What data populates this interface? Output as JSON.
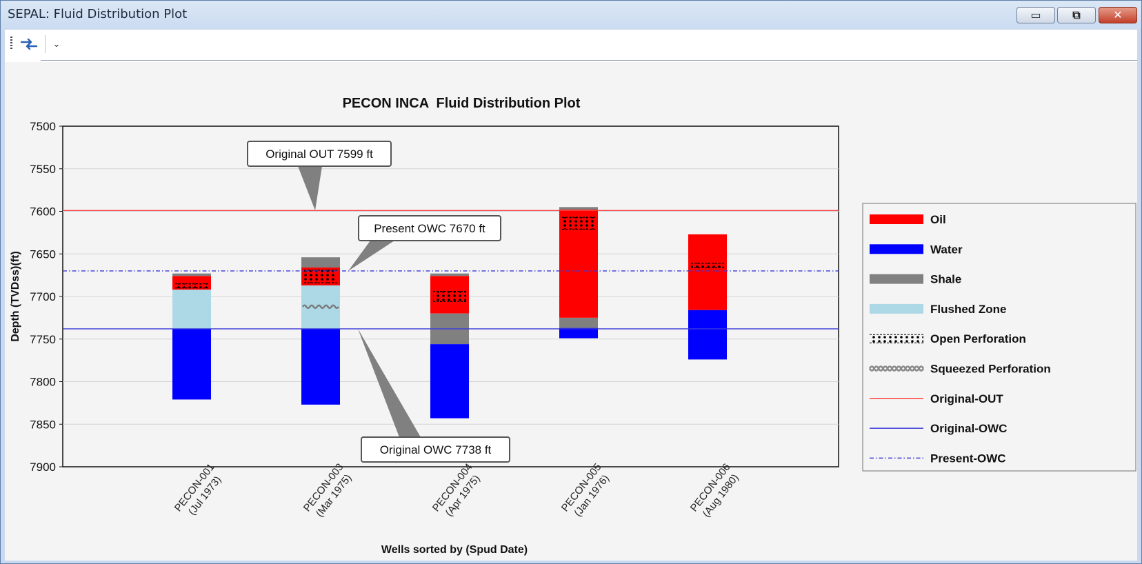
{
  "window": {
    "title": "SEPAL: Fluid Distribution Plot",
    "min_glyph": "▭",
    "max_glyph": "⧉",
    "close_glyph": "✕"
  },
  "toolbar": {
    "refresh_icon": "swap-arrows-icon",
    "overflow_glyph": "⌄"
  },
  "colors": {
    "oil": "#ff0000",
    "water": "#0000ff",
    "shale": "#808080",
    "flushed": "#add8e6",
    "original_out": "#ff4040",
    "original_owc": "#3a3ad8",
    "present_owc": "#3a3ad8"
  },
  "chart_data": {
    "type": "bar",
    "title": "PECON INCA  Fluid Distribution Plot",
    "xlabel": "Wells sorted by (Spud Date)",
    "ylabel": "Depth (TVDss)(ft)",
    "ylim": [
      7500,
      7900
    ],
    "y_inverted": true,
    "yticks": [
      7500,
      7550,
      7600,
      7650,
      7700,
      7750,
      7800,
      7850,
      7900
    ],
    "grid": true,
    "categories": [
      {
        "name": "PECON-001",
        "date": "(Jul 1973)"
      },
      {
        "name": "PECON-003",
        "date": "(Mar 1975)"
      },
      {
        "name": "PECON-004",
        "date": "(Apr 1975)"
      },
      {
        "name": "PECON-005",
        "date": "(Jan 1976)"
      },
      {
        "name": "PECON-006",
        "date": "(Aug 1980)"
      }
    ],
    "wells": [
      {
        "segments": [
          {
            "type": "shale",
            "top": 7673,
            "bottom": 7676
          },
          {
            "type": "oil",
            "top": 7676,
            "bottom": 7692
          },
          {
            "type": "flushed",
            "top": 7692,
            "bottom": 7738
          },
          {
            "type": "water",
            "top": 7738,
            "bottom": 7821
          }
        ],
        "open_perfs": [
          {
            "top": 7685,
            "bottom": 7690
          }
        ],
        "squeezed_perfs": []
      },
      {
        "segments": [
          {
            "type": "shale",
            "top": 7654,
            "bottom": 7666
          },
          {
            "type": "oil",
            "top": 7666,
            "bottom": 7687
          },
          {
            "type": "flushed",
            "top": 7687,
            "bottom": 7738
          },
          {
            "type": "water",
            "top": 7738,
            "bottom": 7827
          }
        ],
        "open_perfs": [
          {
            "top": 7669,
            "bottom": 7684
          }
        ],
        "squeezed_perfs": [
          {
            "top": 7709,
            "bottom": 7715
          }
        ]
      },
      {
        "segments": [
          {
            "type": "shale",
            "top": 7673,
            "bottom": 7676
          },
          {
            "type": "oil",
            "top": 7676,
            "bottom": 7720
          },
          {
            "type": "shale",
            "top": 7720,
            "bottom": 7756
          },
          {
            "type": "water",
            "top": 7756,
            "bottom": 7843
          }
        ],
        "open_perfs": [
          {
            "top": 7694,
            "bottom": 7706
          }
        ],
        "squeezed_perfs": []
      },
      {
        "segments": [
          {
            "type": "shale",
            "top": 7595,
            "bottom": 7598
          },
          {
            "type": "oil",
            "top": 7598,
            "bottom": 7725
          },
          {
            "type": "shale",
            "top": 7725,
            "bottom": 7737
          },
          {
            "type": "water",
            "top": 7737,
            "bottom": 7749
          }
        ],
        "open_perfs": [
          {
            "top": 7607,
            "bottom": 7621
          }
        ],
        "squeezed_perfs": []
      },
      {
        "segments": [
          {
            "type": "oil",
            "top": 7627,
            "bottom": 7716
          },
          {
            "type": "water",
            "top": 7716,
            "bottom": 7774
          }
        ],
        "open_perfs": [
          {
            "top": 7661,
            "bottom": 7666
          }
        ],
        "squeezed_perfs": []
      }
    ],
    "reference_lines": [
      {
        "name": "Original-OUT",
        "depth": 7599,
        "style": "solid",
        "color_key": "original_out"
      },
      {
        "name": "Original-OWC",
        "depth": 7738,
        "style": "solid",
        "color_key": "original_owc"
      },
      {
        "name": "Present-OWC",
        "depth": 7670,
        "style": "dashdot",
        "color_key": "present_owc"
      }
    ],
    "callouts": [
      {
        "text": "Original OUT 7599 ft",
        "depth": 7599
      },
      {
        "text": "Present OWC 7670 ft",
        "depth": 7670
      },
      {
        "text": "Original OWC 7738 ft",
        "depth": 7738
      }
    ],
    "legend_position": "right",
    "legend": [
      {
        "label": "Oil",
        "kind": "fill",
        "key": "oil"
      },
      {
        "label": "Water",
        "kind": "fill",
        "key": "water"
      },
      {
        "label": "Shale",
        "kind": "fill",
        "key": "shale"
      },
      {
        "label": "Flushed Zone",
        "kind": "fill",
        "key": "flushed"
      },
      {
        "label": "Open Perforation",
        "kind": "openperf",
        "key": "openperf"
      },
      {
        "label": "Squeezed Perforation",
        "kind": "squeezed",
        "key": "squeezed"
      },
      {
        "label": "Original-OUT",
        "kind": "line",
        "key": "original_out"
      },
      {
        "label": "Original-OWC",
        "kind": "line",
        "key": "original_owc"
      },
      {
        "label": "Present-OWC",
        "kind": "dashdot",
        "key": "present_owc"
      }
    ]
  }
}
